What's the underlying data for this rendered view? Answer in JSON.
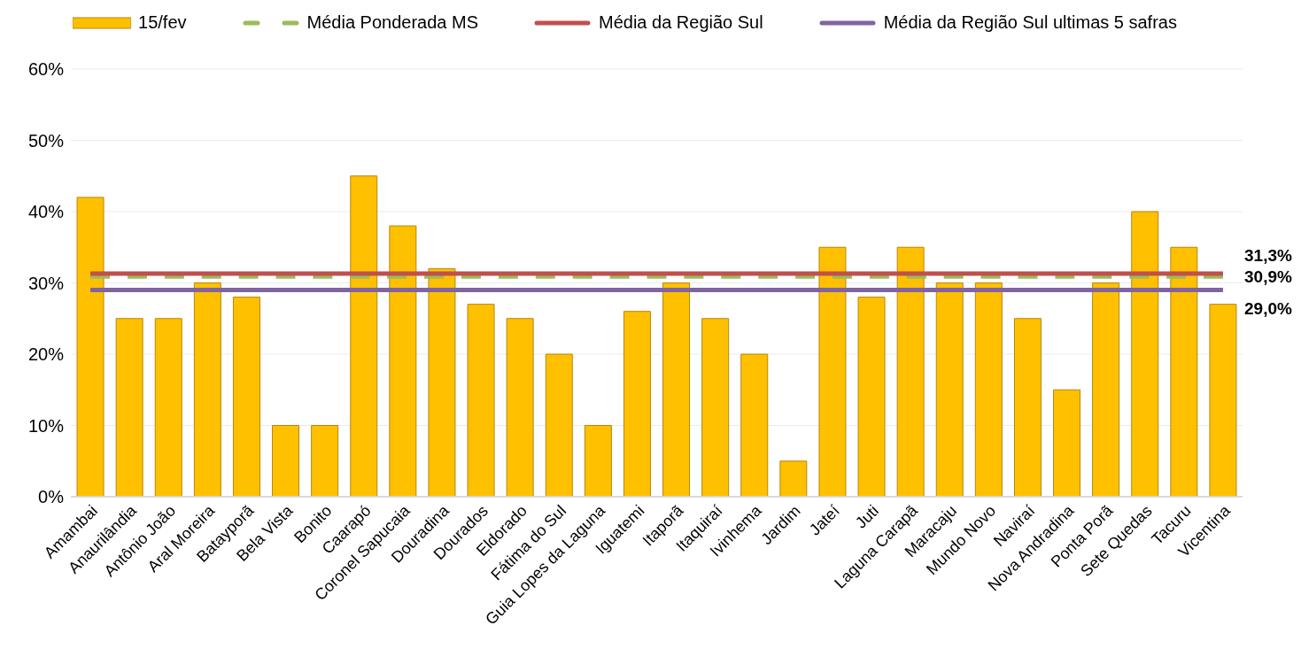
{
  "chart_data": {
    "type": "bar",
    "categories": [
      "Amambai",
      "Anaurilândia",
      "Antônio João",
      "Aral Moreira",
      "Batayporã",
      "Bela Vista",
      "Bonito",
      "Caarapó",
      "Coronel Sapucaia",
      "Douradina",
      "Dourados",
      "Eldorado",
      "Fátima do Sul",
      "Guia Lopes da Laguna",
      "Iguatemi",
      "Itaporã",
      "Itaquiraí",
      "Ivinhema",
      "Jardim",
      "Jateí",
      "Juti",
      "Laguna Carapã",
      "Maracaju",
      "Mundo Novo",
      "Naviraí",
      "Nova Andradina",
      "Ponta Porã",
      "Sete Quedas",
      "Tacuru",
      "Vicentina"
    ],
    "series": [
      {
        "name": "15/fev",
        "color": "#ffc000",
        "values": [
          42,
          25,
          25,
          30,
          28,
          10,
          10,
          45,
          38,
          32,
          27,
          25,
          20,
          10,
          26,
          30,
          25,
          20,
          5,
          35,
          28,
          35,
          30,
          30,
          25,
          15,
          30,
          40,
          35,
          27
        ]
      },
      {
        "name": "Média Ponderada MS",
        "type": "line",
        "color": "#9bbb59",
        "line_style": "dashed",
        "values": [
          30.9,
          30.9,
          30.9,
          30.9,
          30.9,
          30.9,
          30.9,
          30.9,
          30.9,
          30.9,
          30.9,
          30.9,
          30.9,
          30.9,
          30.9,
          30.9,
          30.9,
          30.9,
          30.9,
          30.9,
          30.9,
          30.9,
          30.9,
          30.9,
          30.9,
          30.9,
          30.9,
          30.9,
          30.9,
          30.9
        ],
        "value_labels": [
          null,
          null,
          null,
          null,
          null,
          null,
          null,
          null,
          null,
          null,
          null,
          null,
          null,
          null,
          null,
          null,
          null,
          null,
          null,
          null,
          null,
          null,
          null,
          null,
          null,
          null,
          null,
          null,
          null,
          "30,9%"
        ]
      },
      {
        "name": "Média da Região Sul",
        "type": "line",
        "color": "#c0504d",
        "values": [
          31.3,
          31.3,
          31.3,
          31.3,
          31.3,
          31.3,
          31.3,
          31.3,
          31.3,
          31.3,
          31.3,
          31.3,
          31.3,
          31.3,
          31.3,
          31.3,
          31.3,
          31.3,
          31.3,
          31.3,
          31.3,
          31.3,
          31.3,
          31.3,
          31.3,
          31.3,
          31.3,
          31.3,
          31.3,
          31.3
        ],
        "value_labels": [
          null,
          null,
          null,
          null,
          null,
          null,
          null,
          null,
          null,
          null,
          null,
          null,
          null,
          null,
          null,
          null,
          null,
          null,
          null,
          null,
          null,
          null,
          null,
          null,
          null,
          null,
          null,
          null,
          null,
          "31,3%"
        ]
      },
      {
        "name": "Média da Região Sul ultimas 5 safras",
        "type": "line",
        "color": "#8064a2",
        "values": [
          29.0,
          29.0,
          29.0,
          29.0,
          29.0,
          29.0,
          29.0,
          29.0,
          29.0,
          29.0,
          29.0,
          29.0,
          29.0,
          29.0,
          29.0,
          29.0,
          29.0,
          29.0,
          29.0,
          29.0,
          29.0,
          29.0,
          29.0,
          29.0,
          29.0,
          29.0,
          29.0,
          29.0,
          29.0,
          29.0
        ],
        "value_labels": [
          null,
          null,
          null,
          null,
          null,
          null,
          null,
          null,
          null,
          null,
          null,
          null,
          null,
          null,
          null,
          null,
          null,
          null,
          null,
          null,
          null,
          null,
          null,
          null,
          null,
          null,
          null,
          null,
          null,
          "29,0%"
        ]
      }
    ],
    "ylim": [
      0,
      60
    ],
    "yticks": [
      {
        "value": 0,
        "label": "0%"
      },
      {
        "value": 10,
        "label": "10%"
      },
      {
        "value": 20,
        "label": "20%"
      },
      {
        "value": 30,
        "label": "30%"
      },
      {
        "value": 40,
        "label": "40%"
      },
      {
        "value": 50,
        "label": "50%"
      },
      {
        "value": 60,
        "label": "60%"
      }
    ],
    "grid": "y",
    "legend": "top",
    "marker": "none"
  }
}
